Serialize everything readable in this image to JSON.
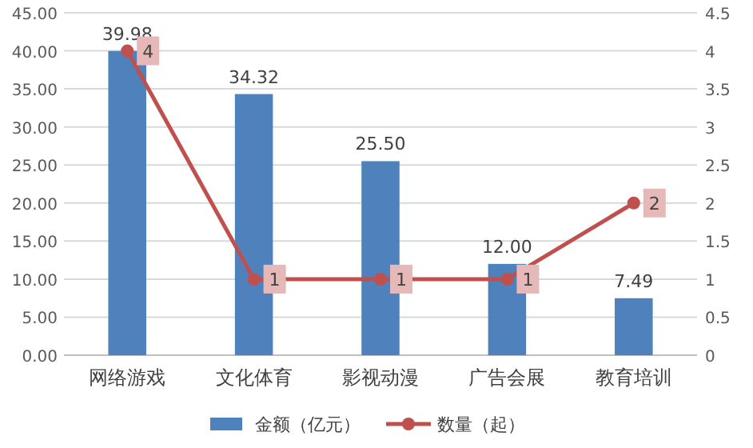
{
  "chart_data": {
    "type": "bar",
    "categories": [
      "网络游戏",
      "文化体育",
      "影视动漫",
      "广告会展",
      "教育培训"
    ],
    "series": [
      {
        "name": "金额（亿元）",
        "color": "#4f81bd",
        "values": [
          39.98,
          34.32,
          25.5,
          12.0,
          7.49
        ],
        "value_labels": [
          "39.98",
          "34.32",
          "25.50",
          "12.00",
          "7.49"
        ]
      },
      {
        "name": "数量（起）",
        "type": "line",
        "axis": "y2",
        "color": "#c0504d",
        "values": [
          4,
          1,
          1,
          1,
          2
        ],
        "value_labels": [
          "4",
          "1",
          "1",
          "1",
          "2"
        ],
        "marker": "circle"
      }
    ],
    "ylim": [
      0,
      45
    ],
    "yticks": [
      {
        "value": 0,
        "label": "0.00"
      },
      {
        "value": 5,
        "label": "5.00"
      },
      {
        "value": 10,
        "label": "10.00"
      },
      {
        "value": 15,
        "label": "15.00"
      },
      {
        "value": 20,
        "label": "20.00"
      },
      {
        "value": 25,
        "label": "25.00"
      },
      {
        "value": 30,
        "label": "30.00"
      },
      {
        "value": 35,
        "label": "35.00"
      },
      {
        "value": 40,
        "label": "40.00"
      },
      {
        "value": 45,
        "label": "45.00"
      }
    ],
    "y2lim": [
      0,
      4.5
    ],
    "y2ticks": [
      0,
      0.5,
      1,
      1.5,
      2,
      2.5,
      3,
      3.5,
      4,
      4.5
    ],
    "grid": "y",
    "legend": "bottom"
  }
}
